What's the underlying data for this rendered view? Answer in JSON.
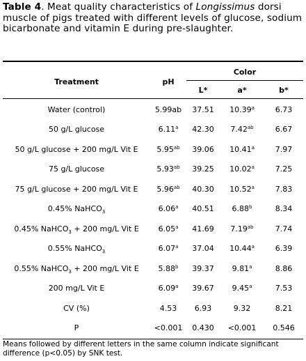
{
  "caption": {
    "label": "Table 4",
    "text_part1": ". Meat quality characteristics of ",
    "species": "Longissimus",
    "text_part2": " dorsi muscle of pigs treated with different levels of glucose, sodium bicarbonate and vitamin E during pre-slaughter."
  },
  "headers": {
    "treatment": "Treatment",
    "ph": "pH",
    "color": "Color",
    "l": "L*",
    "a": "a*",
    "b": "b*"
  },
  "rows": [
    {
      "treatment": "Water (control)",
      "treatment_sub": "",
      "treatment_tail": "",
      "ph": "5.99ab",
      "ph_sup": "",
      "l": "37.51",
      "a": "10.39",
      "a_sup": "a",
      "b": "6.73"
    },
    {
      "treatment": "50 g/L glucose",
      "treatment_sub": "",
      "treatment_tail": "",
      "ph": "6.11",
      "ph_sup": "a",
      "l": "42.30",
      "a": "7.42",
      "a_sup": "ab",
      "b": "6.67"
    },
    {
      "treatment": "50 g/L glucose + 200 mg/L Vit E",
      "treatment_sub": "",
      "treatment_tail": "",
      "ph": "5.95",
      "ph_sup": "ab",
      "l": "39.06",
      "a": "10.41",
      "a_sup": "a",
      "b": "7.97"
    },
    {
      "treatment": "75 g/L glucose",
      "treatment_sub": "",
      "treatment_tail": "",
      "ph": "5.93",
      "ph_sup": "ab",
      "l": "39.25",
      "a": "10.02",
      "a_sup": "a",
      "b": "7.25"
    },
    {
      "treatment": "75 g/L glucose + 200 mg/L Vit E",
      "treatment_sub": "",
      "treatment_tail": "",
      "ph": "5.96",
      "ph_sup": "ab",
      "l": "40.30",
      "a": "10.52",
      "a_sup": "a",
      "b": "7.83"
    },
    {
      "treatment": "0.45% NaHCO",
      "treatment_sub": "3",
      "treatment_tail": "",
      "ph": "6.06",
      "ph_sup": "a",
      "l": "40.51",
      "a": "6.88",
      "a_sup": "b",
      "b": "8.34"
    },
    {
      "treatment": "0.45% NaHCO",
      "treatment_sub": "3",
      "treatment_tail": " + 200 mg/L Vit E",
      "ph": "6.05",
      "ph_sup": "a",
      "l": "41.69",
      "a": "7.19",
      "a_sup": "ab",
      "b": "7.74"
    },
    {
      "treatment": "0.55% NaHCO",
      "treatment_sub": "3",
      "treatment_tail": "",
      "ph": "6.07",
      "ph_sup": "a",
      "l": "37.04",
      "a": "10.44",
      "a_sup": "a",
      "b": "6.39"
    },
    {
      "treatment": "0.55% NaHCO",
      "treatment_sub": "3",
      "treatment_tail": " + 200 mg/L Vit E",
      "ph": "5.88",
      "ph_sup": "b",
      "l": "39.37",
      "a": "9.81",
      "a_sup": "a",
      "b": "8.86"
    },
    {
      "treatment": "200 mg/L Vit E",
      "treatment_sub": "",
      "treatment_tail": "",
      "ph": "6.09",
      "ph_sup": "a",
      "l": "39.67",
      "a": "9.45",
      "a_sup": "a",
      "b": "7.53"
    },
    {
      "treatment": "CV (%)",
      "treatment_sub": "",
      "treatment_tail": "",
      "ph": "4.53",
      "ph_sup": "",
      "l": "6.93",
      "a": "9.32",
      "a_sup": "",
      "b": "8.21"
    },
    {
      "treatment": "P",
      "treatment_sub": "",
      "treatment_tail": "",
      "ph": "<0.001",
      "ph_sup": "",
      "l": "0.430",
      "a": "<0.001",
      "a_sup": "",
      "b": "0.546"
    }
  ],
  "footnote": "Means followed by different letters in the same column indicate significant difference (p<0.05) by SNK test."
}
